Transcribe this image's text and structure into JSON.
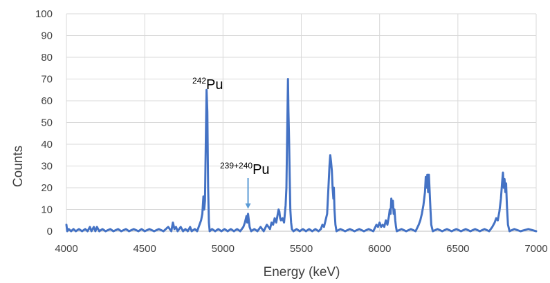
{
  "chart_data": {
    "type": "line",
    "title": "",
    "xlabel": "Energy (keV)",
    "ylabel": "Counts",
    "xlim": [
      4000,
      7000
    ],
    "ylim": [
      0,
      100
    ],
    "x_ticks": [
      4000,
      4500,
      5000,
      5500,
      6000,
      6500,
      7000
    ],
    "y_ticks": [
      0,
      10,
      20,
      30,
      40,
      50,
      60,
      70,
      80,
      90,
      100
    ],
    "grid": true,
    "legend": "none",
    "series": [
      {
        "color": "#4472C4",
        "points": [
          [
            4000,
            3
          ],
          [
            4005,
            0
          ],
          [
            4015,
            1
          ],
          [
            4030,
            0
          ],
          [
            4045,
            1
          ],
          [
            4060,
            0
          ],
          [
            4080,
            1
          ],
          [
            4100,
            0
          ],
          [
            4120,
            1
          ],
          [
            4135,
            0
          ],
          [
            4150,
            2
          ],
          [
            4160,
            0
          ],
          [
            4175,
            2
          ],
          [
            4185,
            0
          ],
          [
            4195,
            2
          ],
          [
            4210,
            0
          ],
          [
            4230,
            1
          ],
          [
            4250,
            0
          ],
          [
            4280,
            1
          ],
          [
            4300,
            0
          ],
          [
            4330,
            1
          ],
          [
            4350,
            0
          ],
          [
            4380,
            1
          ],
          [
            4400,
            0
          ],
          [
            4430,
            1
          ],
          [
            4460,
            0
          ],
          [
            4480,
            1
          ],
          [
            4500,
            0
          ],
          [
            4530,
            1
          ],
          [
            4560,
            0
          ],
          [
            4590,
            1
          ],
          [
            4620,
            0
          ],
          [
            4650,
            2
          ],
          [
            4670,
            0
          ],
          [
            4680,
            4
          ],
          [
            4690,
            1
          ],
          [
            4700,
            2
          ],
          [
            4710,
            0
          ],
          [
            4730,
            2
          ],
          [
            4745,
            0
          ],
          [
            4760,
            1
          ],
          [
            4775,
            0
          ],
          [
            4790,
            2
          ],
          [
            4800,
            0
          ],
          [
            4820,
            1
          ],
          [
            4835,
            0
          ],
          [
            4850,
            3
          ],
          [
            4860,
            5
          ],
          [
            4868,
            8
          ],
          [
            4875,
            16
          ],
          [
            4880,
            10
          ],
          [
            4885,
            14
          ],
          [
            4890,
            40
          ],
          [
            4895,
            65
          ],
          [
            4900,
            55
          ],
          [
            4905,
            20
          ],
          [
            4910,
            4
          ],
          [
            4915,
            0
          ],
          [
            4930,
            1
          ],
          [
            4950,
            0
          ],
          [
            4970,
            1
          ],
          [
            4990,
            0
          ],
          [
            5010,
            1
          ],
          [
            5030,
            0
          ],
          [
            5050,
            1
          ],
          [
            5070,
            0
          ],
          [
            5090,
            1
          ],
          [
            5110,
            0
          ],
          [
            5130,
            2
          ],
          [
            5140,
            4
          ],
          [
            5150,
            7
          ],
          [
            5155,
            4
          ],
          [
            5160,
            8
          ],
          [
            5165,
            5
          ],
          [
            5170,
            2
          ],
          [
            5180,
            0
          ],
          [
            5200,
            1
          ],
          [
            5220,
            0
          ],
          [
            5240,
            2
          ],
          [
            5260,
            0
          ],
          [
            5280,
            3
          ],
          [
            5300,
            1
          ],
          [
            5310,
            4
          ],
          [
            5320,
            3
          ],
          [
            5330,
            6
          ],
          [
            5340,
            4
          ],
          [
            5350,
            8
          ],
          [
            5355,
            10
          ],
          [
            5360,
            9
          ],
          [
            5365,
            6
          ],
          [
            5370,
            5
          ],
          [
            5380,
            6
          ],
          [
            5390,
            4
          ],
          [
            5395,
            8
          ],
          [
            5400,
            12
          ],
          [
            5405,
            20
          ],
          [
            5410,
            45
          ],
          [
            5415,
            70
          ],
          [
            5418,
            55
          ],
          [
            5422,
            42
          ],
          [
            5426,
            25
          ],
          [
            5430,
            10
          ],
          [
            5435,
            4
          ],
          [
            5440,
            1
          ],
          [
            5450,
            0
          ],
          [
            5470,
            1
          ],
          [
            5490,
            0
          ],
          [
            5510,
            1
          ],
          [
            5530,
            0
          ],
          [
            5550,
            1
          ],
          [
            5570,
            0
          ],
          [
            5590,
            1
          ],
          [
            5610,
            0
          ],
          [
            5625,
            1
          ],
          [
            5635,
            3
          ],
          [
            5645,
            2
          ],
          [
            5655,
            5
          ],
          [
            5665,
            8
          ],
          [
            5672,
            18
          ],
          [
            5680,
            30
          ],
          [
            5685,
            35
          ],
          [
            5690,
            32
          ],
          [
            5695,
            28
          ],
          [
            5700,
            20
          ],
          [
            5705,
            15
          ],
          [
            5708,
            20
          ],
          [
            5712,
            10
          ],
          [
            5718,
            3
          ],
          [
            5725,
            0
          ],
          [
            5750,
            1
          ],
          [
            5780,
            0
          ],
          [
            5810,
            1
          ],
          [
            5840,
            0
          ],
          [
            5870,
            1
          ],
          [
            5900,
            0
          ],
          [
            5930,
            1
          ],
          [
            5960,
            0
          ],
          [
            5980,
            3
          ],
          [
            5990,
            2
          ],
          [
            6000,
            4
          ],
          [
            6010,
            2
          ],
          [
            6020,
            3
          ],
          [
            6030,
            2
          ],
          [
            6040,
            5
          ],
          [
            6050,
            3
          ],
          [
            6060,
            7
          ],
          [
            6065,
            10
          ],
          [
            6070,
            8
          ],
          [
            6075,
            15
          ],
          [
            6080,
            11
          ],
          [
            6085,
            14
          ],
          [
            6090,
            8
          ],
          [
            6095,
            10
          ],
          [
            6100,
            5
          ],
          [
            6105,
            2
          ],
          [
            6110,
            0
          ],
          [
            6140,
            1
          ],
          [
            6170,
            0
          ],
          [
            6200,
            1
          ],
          [
            6230,
            0
          ],
          [
            6250,
            3
          ],
          [
            6260,
            5
          ],
          [
            6270,
            8
          ],
          [
            6280,
            12
          ],
          [
            6290,
            18
          ],
          [
            6295,
            25
          ],
          [
            6300,
            20
          ],
          [
            6305,
            26
          ],
          [
            6310,
            18
          ],
          [
            6315,
            26
          ],
          [
            6320,
            18
          ],
          [
            6325,
            10
          ],
          [
            6330,
            3
          ],
          [
            6340,
            0
          ],
          [
            6370,
            1
          ],
          [
            6400,
            0
          ],
          [
            6430,
            1
          ],
          [
            6460,
            0
          ],
          [
            6490,
            1
          ],
          [
            6520,
            0
          ],
          [
            6550,
            1
          ],
          [
            6580,
            0
          ],
          [
            6610,
            1
          ],
          [
            6640,
            0
          ],
          [
            6670,
            1
          ],
          [
            6700,
            0
          ],
          [
            6720,
            2
          ],
          [
            6735,
            4
          ],
          [
            6745,
            6
          ],
          [
            6755,
            5
          ],
          [
            6765,
            9
          ],
          [
            6775,
            15
          ],
          [
            6782,
            22
          ],
          [
            6788,
            27
          ],
          [
            6793,
            20
          ],
          [
            6798,
            24
          ],
          [
            6803,
            18
          ],
          [
            6808,
            22
          ],
          [
            6813,
            12
          ],
          [
            6820,
            3
          ],
          [
            6830,
            0
          ],
          [
            6860,
            1
          ],
          [
            6900,
            0
          ],
          [
            6950,
            1
          ],
          [
            7000,
            0
          ]
        ]
      }
    ],
    "annotations": [
      {
        "sup": "242",
        "text": "Pu"
      },
      {
        "sup": "239+240",
        "text": "Pu",
        "arrow_to": [
          5160,
          9
        ]
      }
    ]
  }
}
